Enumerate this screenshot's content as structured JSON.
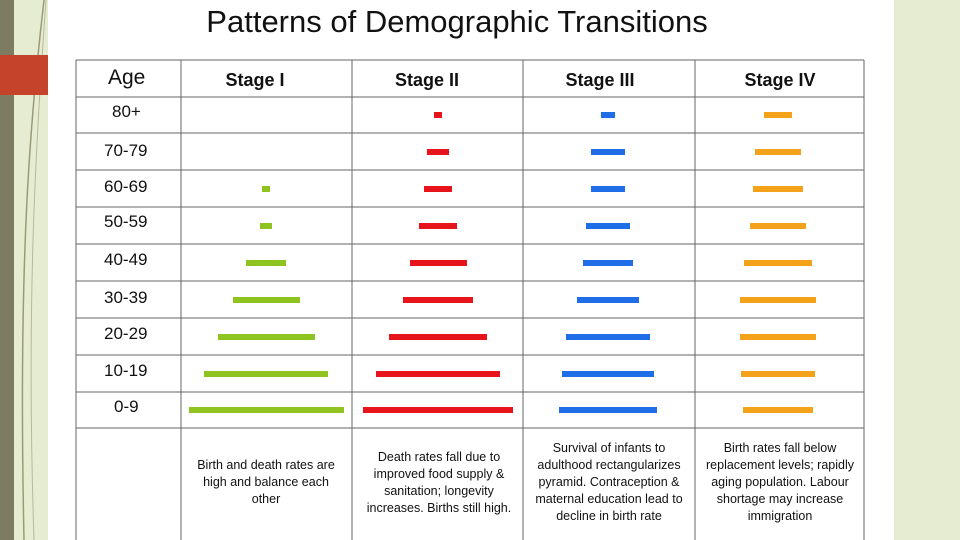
{
  "title": "Patterns of Demographic Transitions",
  "age_header": "Age",
  "stages": [
    {
      "label": "Stage I",
      "color": "#8fc31f",
      "description": "Birth and death rates are high and balance each other"
    },
    {
      "label": "Stage II",
      "color": "#e8141b",
      "description": "Death rates fall due to improved food supply & sanitation; longevity increases. Births still high."
    },
    {
      "label": "Stage III",
      "color": "#1f6ee8",
      "description": "Survival of infants to adulthood rectangularizes pyramid. Contraception & maternal education lead to decline in birth rate"
    },
    {
      "label": "Stage IV",
      "color": "#f5a21b",
      "description": "Birth rates fall below replacement levels; rapidly aging population. Labour shortage may increase immigration"
    }
  ],
  "age_groups": [
    "80+",
    "70-79",
    "60-69",
    "50-59",
    "40-49",
    "30-39",
    "20-29",
    "10-19",
    "0-9"
  ],
  "bar_widths_by_stage": [
    [
      0,
      0,
      8,
      12,
      40,
      67,
      97,
      124,
      155
    ],
    [
      8,
      22,
      28,
      38,
      57,
      70,
      98,
      124,
      150
    ],
    [
      14,
      34,
      34,
      44,
      50,
      62,
      84,
      92,
      98
    ],
    [
      28,
      46,
      50,
      56,
      68,
      76,
      76,
      74,
      70
    ]
  ]
}
